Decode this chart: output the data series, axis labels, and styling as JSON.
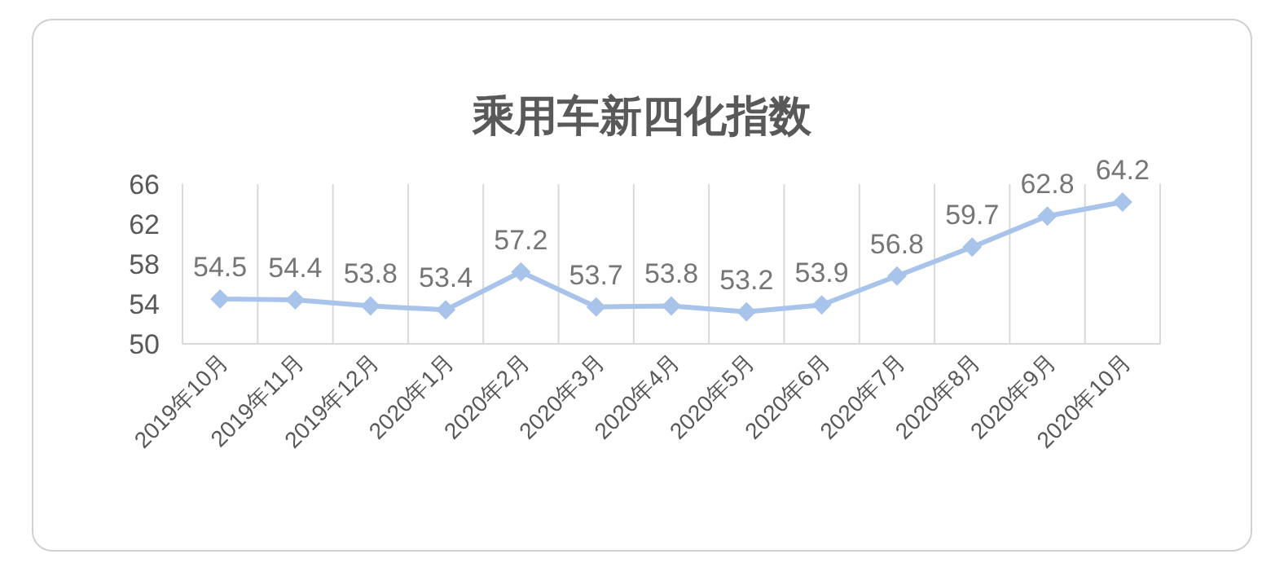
{
  "chart_data": {
    "type": "line",
    "title": "乘用车新四化指数",
    "categories": [
      "2019年10月",
      "2019年11月",
      "2019年12月",
      "2020年1月",
      "2020年2月",
      "2020年3月",
      "2020年4月",
      "2020年5月",
      "2020年6月",
      "2020年7月",
      "2020年8月",
      "2020年9月",
      "2020年10月"
    ],
    "series": [
      {
        "color": "#a9c4eb",
        "values": [
          54.5,
          54.4,
          53.8,
          53.4,
          57.2,
          53.7,
          53.8,
          53.2,
          53.9,
          56.8,
          59.7,
          62.8,
          64.2
        ]
      }
    ],
    "ylim": [
      50,
      66
    ],
    "yticks": [
      50,
      54,
      58,
      62,
      66
    ],
    "grid": "x",
    "marker": "diamond",
    "data_labels": true
  }
}
